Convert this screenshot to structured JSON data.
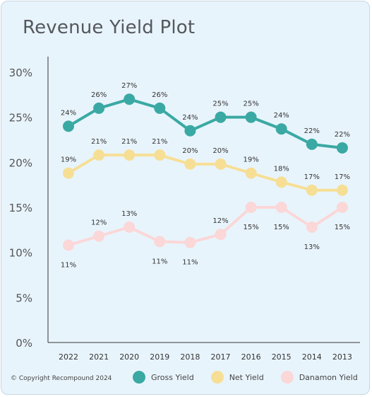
{
  "chart_data": {
    "type": "line",
    "title": "Revenue Yield Plot",
    "categories": [
      "2022",
      "2021",
      "2020",
      "2019",
      "2018",
      "2017",
      "2016",
      "2015",
      "2014",
      "2013"
    ],
    "ylim": [
      0,
      30
    ],
    "yticks": [
      0,
      5,
      10,
      15,
      20,
      25,
      30
    ],
    "ytick_labels": [
      "0%",
      "5%",
      "10%",
      "15%",
      "20%",
      "25%",
      "30%"
    ],
    "grid": false,
    "legend_position": "bottom",
    "series": [
      {
        "name": "Gross Yield",
        "color": "#3aa9a3",
        "label_position": "above",
        "values": [
          24,
          26,
          27,
          26,
          23.5,
          25,
          25,
          23.7,
          22,
          21.6
        ],
        "labels": [
          "24%",
          "26%",
          "27%",
          "26%",
          "24%",
          "25%",
          "25%",
          "24%",
          "22%",
          "22%"
        ]
      },
      {
        "name": "Net Yield",
        "color": "#f6df95",
        "label_position": "above",
        "values": [
          18.8,
          20.8,
          20.8,
          20.8,
          19.8,
          19.8,
          18.8,
          17.8,
          16.9,
          16.9
        ],
        "labels": [
          "19%",
          "21%",
          "21%",
          "21%",
          "20%",
          "20%",
          "19%",
          "18%",
          "17%",
          "17%"
        ]
      },
      {
        "name": "Danamon Yield",
        "color": "#fbd7d8",
        "label_positions": [
          "below",
          "above",
          "above",
          "below",
          "below",
          "above",
          "below",
          "below",
          "below",
          "below"
        ],
        "values": [
          10.8,
          11.8,
          12.8,
          11.2,
          11.1,
          12.0,
          15.0,
          15.0,
          12.8,
          15.0
        ],
        "labels": [
          "11%",
          "12%",
          "13%",
          "11%",
          "11%",
          "12%",
          "15%",
          "15%",
          "13%",
          "15%"
        ]
      }
    ]
  },
  "copyright": "© Copyright Recompound 2024"
}
